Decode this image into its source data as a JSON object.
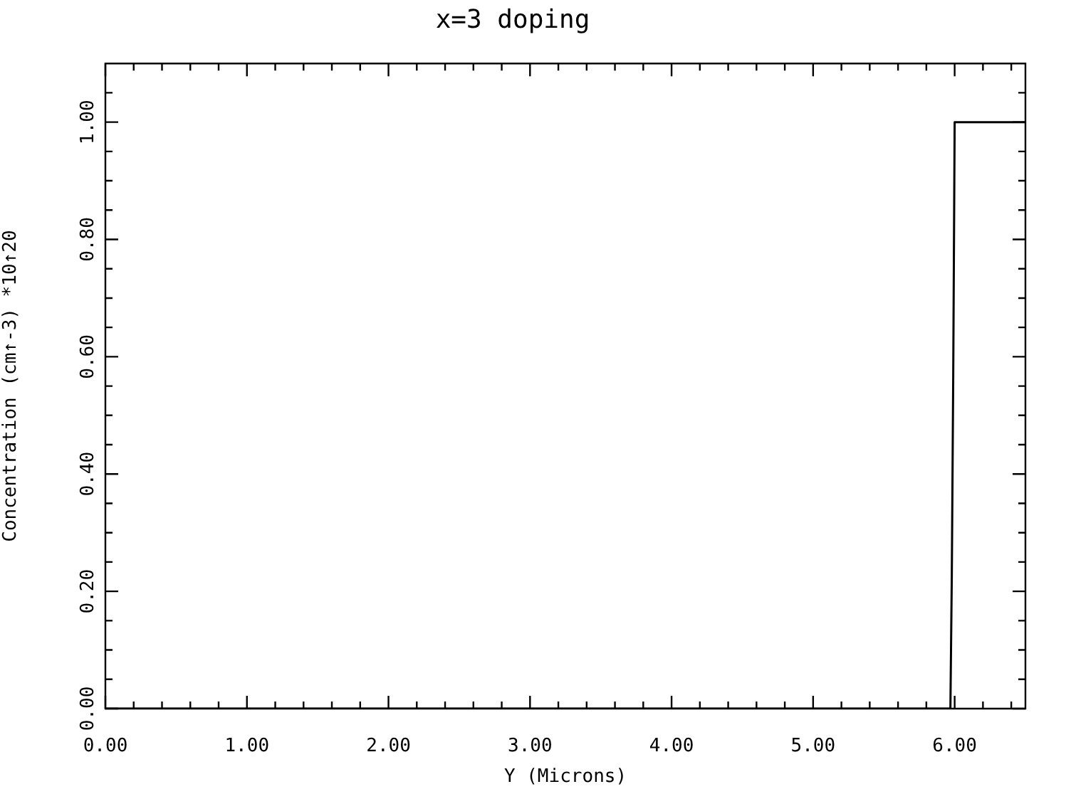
{
  "chart_data": {
    "type": "line",
    "title": "x=3 doping",
    "xlabel": "Y (Microns)",
    "ylabel": "Concentration (cm↑-3) *10↑20",
    "series": [
      {
        "color": "#000000",
        "x": [
          0,
          5.97,
          5.98,
          5.99,
          6.0,
          6.5
        ],
        "values": [
          0,
          0,
          0.23,
          0.57,
          1,
          1
        ]
      }
    ],
    "xlim": [
      0,
      6.5
    ],
    "ylim": [
      0,
      1.1
    ],
    "xticks": [
      {
        "value": 0,
        "label": "0.00"
      },
      {
        "value": 0.2,
        "label": null
      },
      {
        "value": 0.4,
        "label": null
      },
      {
        "value": 0.6,
        "label": null
      },
      {
        "value": 0.8,
        "label": null
      },
      {
        "value": 1,
        "label": "1.00"
      },
      {
        "value": 1.2,
        "label": null
      },
      {
        "value": 1.4,
        "label": null
      },
      {
        "value": 1.6,
        "label": null
      },
      {
        "value": 1.8,
        "label": null
      },
      {
        "value": 2,
        "label": "2.00"
      },
      {
        "value": 2.2,
        "label": null
      },
      {
        "value": 2.4,
        "label": null
      },
      {
        "value": 2.6,
        "label": null
      },
      {
        "value": 2.8,
        "label": null
      },
      {
        "value": 3,
        "label": "3.00"
      },
      {
        "value": 3.2,
        "label": null
      },
      {
        "value": 3.4,
        "label": null
      },
      {
        "value": 3.6,
        "label": null
      },
      {
        "value": 3.8,
        "label": null
      },
      {
        "value": 4,
        "label": "4.00"
      },
      {
        "value": 4.2,
        "label": null
      },
      {
        "value": 4.4,
        "label": null
      },
      {
        "value": 4.6,
        "label": null
      },
      {
        "value": 4.8,
        "label": null
      },
      {
        "value": 5,
        "label": "5.00"
      },
      {
        "value": 5.2,
        "label": null
      },
      {
        "value": 5.4,
        "label": null
      },
      {
        "value": 5.6,
        "label": null
      },
      {
        "value": 5.8,
        "label": null
      },
      {
        "value": 6,
        "label": "6.00"
      },
      {
        "value": 6.2,
        "label": null
      },
      {
        "value": 6.4,
        "label": null
      }
    ],
    "yticks": [
      {
        "value": 0,
        "label": "0.00"
      },
      {
        "value": 0.05,
        "label": null
      },
      {
        "value": 0.1,
        "label": null
      },
      {
        "value": 0.15,
        "label": null
      },
      {
        "value": 0.2,
        "label": "0.20"
      },
      {
        "value": 0.25,
        "label": null
      },
      {
        "value": 0.3,
        "label": null
      },
      {
        "value": 0.35,
        "label": null
      },
      {
        "value": 0.4,
        "label": "0.40"
      },
      {
        "value": 0.45,
        "label": null
      },
      {
        "value": 0.5,
        "label": null
      },
      {
        "value": 0.55,
        "label": null
      },
      {
        "value": 0.6,
        "label": "0.60"
      },
      {
        "value": 0.65,
        "label": null
      },
      {
        "value": 0.7,
        "label": null
      },
      {
        "value": 0.75,
        "label": null
      },
      {
        "value": 0.8,
        "label": "0.80"
      },
      {
        "value": 0.85,
        "label": null
      },
      {
        "value": 0.9,
        "label": null
      },
      {
        "value": 0.95,
        "label": null
      },
      {
        "value": 1,
        "label": "1.00"
      },
      {
        "value": 1.05,
        "label": null
      }
    ],
    "grid": false,
    "legend": false,
    "marker": "none",
    "line_style": "solid"
  }
}
